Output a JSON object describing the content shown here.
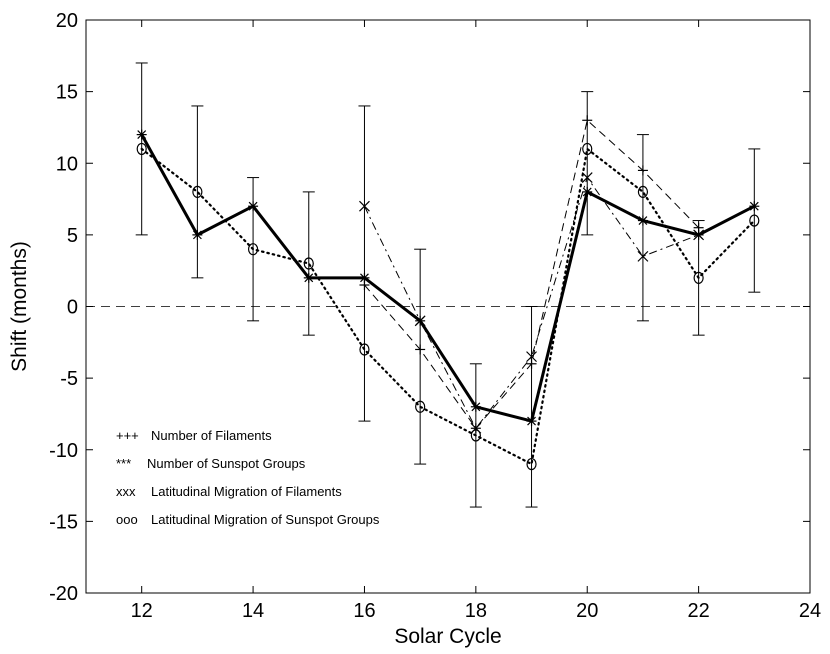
{
  "chart_data": {
    "type": "line",
    "xlabel": "Solar Cycle",
    "ylabel": "Shift (months)",
    "xlim": [
      11,
      24
    ],
    "ylim": [
      -20,
      20
    ],
    "xticks": [
      12,
      14,
      16,
      18,
      20,
      22,
      24
    ],
    "yticks": [
      -20,
      -15,
      -10,
      -5,
      0,
      5,
      10,
      15,
      20
    ],
    "grid": false,
    "reference_line": {
      "y": 0,
      "style": "dashed"
    },
    "legend_position": "lower-left",
    "series": [
      {
        "name": "Number of Filaments",
        "legend_prefix": "+++",
        "marker": "+",
        "line_style": "dashed",
        "x": [
          16,
          17,
          18,
          19,
          20,
          21,
          22
        ],
        "y": [
          1.5,
          -3,
          -8.5,
          -4,
          13,
          9.5,
          5.5
        ]
      },
      {
        "name": "Number of Sunspot Groups",
        "legend_prefix": "***",
        "marker": "*",
        "line_style": "solid-bold",
        "x": [
          12,
          13,
          14,
          15,
          16,
          17,
          18,
          19,
          20,
          21,
          22,
          23
        ],
        "y": [
          12,
          5,
          7,
          2,
          2,
          -1,
          -7,
          -8,
          8,
          6,
          5,
          7
        ]
      },
      {
        "name": "Latitudinal Migration of Filaments",
        "legend_prefix": "xxx",
        "marker": "x",
        "line_style": "dashdot",
        "x": [
          16,
          17,
          18,
          19,
          20,
          21,
          22
        ],
        "y": [
          7,
          -1,
          -8.5,
          -3.5,
          9,
          3.5,
          5
        ]
      },
      {
        "name": "Latitudinal Migration of Sunspot Groups",
        "legend_prefix": "ooo",
        "marker": "o",
        "line_style": "dotted",
        "x": [
          12,
          13,
          14,
          15,
          16,
          17,
          18,
          19,
          20,
          21,
          22,
          23
        ],
        "y": [
          11,
          8,
          4,
          3,
          -3,
          -7,
          -9,
          -11,
          11,
          8,
          2,
          6
        ]
      }
    ],
    "error_bars": [
      {
        "x": 12,
        "low": 5,
        "high": 17
      },
      {
        "x": 13,
        "low": 2,
        "high": 14
      },
      {
        "x": 14,
        "low": -1,
        "high": 9
      },
      {
        "x": 15,
        "low": -2,
        "high": 8
      },
      {
        "x": 16,
        "low": -8,
        "high": 14
      },
      {
        "x": 17,
        "low": -11,
        "high": 4
      },
      {
        "x": 18,
        "low": -14,
        "high": -4
      },
      {
        "x": 19,
        "low": -14,
        "high": 0
      },
      {
        "x": 20,
        "low": 5,
        "high": 15
      },
      {
        "x": 21,
        "low": -1,
        "high": 12
      },
      {
        "x": 22,
        "low": -2,
        "high": 6
      },
      {
        "x": 23,
        "low": 1,
        "high": 11
      }
    ]
  }
}
